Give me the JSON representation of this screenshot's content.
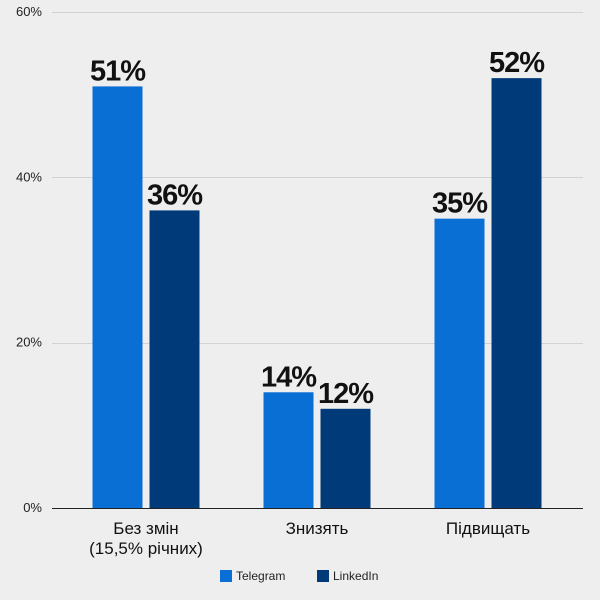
{
  "chart_data": {
    "type": "bar",
    "categories": [
      [
        "Без змін",
        "(15,5% річних)"
      ],
      [
        "Знизять"
      ],
      [
        "Підвищать"
      ]
    ],
    "series": [
      {
        "name": "Telegram",
        "color": "#0a6fd4",
        "values": [
          51,
          14,
          35
        ],
        "labels": [
          "51%",
          "14%",
          "35%"
        ]
      },
      {
        "name": "LinkedIn",
        "color": "#003a78",
        "values": [
          36,
          12,
          52
        ],
        "labels": [
          "36%",
          "12%",
          "52%"
        ]
      }
    ],
    "y_ticks": [
      0,
      20,
      40,
      60
    ],
    "y_tick_labels": [
      "0%",
      "20%",
      "40%",
      "60%"
    ],
    "ylim": [
      0,
      60
    ],
    "title": "",
    "xlabel": "",
    "ylabel": "",
    "legend_position": "bottom-center",
    "grid": true
  }
}
